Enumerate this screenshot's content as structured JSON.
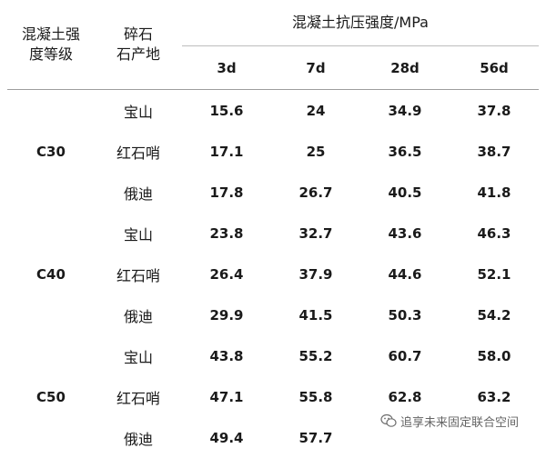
{
  "table": {
    "header": {
      "grade_label": [
        "混凝土强",
        "度等级"
      ],
      "source_label": [
        "碎石",
        "石产地"
      ],
      "strength_label": "混凝土抗压强度/MPa",
      "ages": [
        "3d",
        "7d",
        "28d",
        "56d"
      ]
    },
    "groups": [
      {
        "grade": "C30",
        "rows": [
          {
            "source": "宝山",
            "values": [
              "15.6",
              "24",
              "34.9",
              "37.8"
            ]
          },
          {
            "source": "红石哨",
            "values": [
              "17.1",
              "25",
              "36.5",
              "38.7"
            ]
          },
          {
            "source": "俄迪",
            "values": [
              "17.8",
              "26.7",
              "40.5",
              "41.8"
            ]
          }
        ]
      },
      {
        "grade": "C40",
        "rows": [
          {
            "source": "宝山",
            "values": [
              "23.8",
              "32.7",
              "43.6",
              "46.3"
            ]
          },
          {
            "source": "红石哨",
            "values": [
              "26.4",
              "37.9",
              "44.6",
              "52.1"
            ]
          },
          {
            "source": "俄迪",
            "values": [
              "29.9",
              "41.5",
              "50.3",
              "54.2"
            ]
          }
        ]
      },
      {
        "grade": "C50",
        "rows": [
          {
            "source": "宝山",
            "values": [
              "43.8",
              "55.2",
              "60.7",
              "58.0"
            ]
          },
          {
            "source": "红石哨",
            "values": [
              "47.1",
              "55.8",
              "62.8",
              "63.2"
            ]
          },
          {
            "source": "俄迪",
            "values": [
              "49.4",
              "57.7",
              "",
              ""
            ]
          }
        ]
      }
    ]
  },
  "watermark": {
    "text": "追享未来固定联合空间",
    "icon": "wechat-icon",
    "color": "#4a4a4a"
  }
}
